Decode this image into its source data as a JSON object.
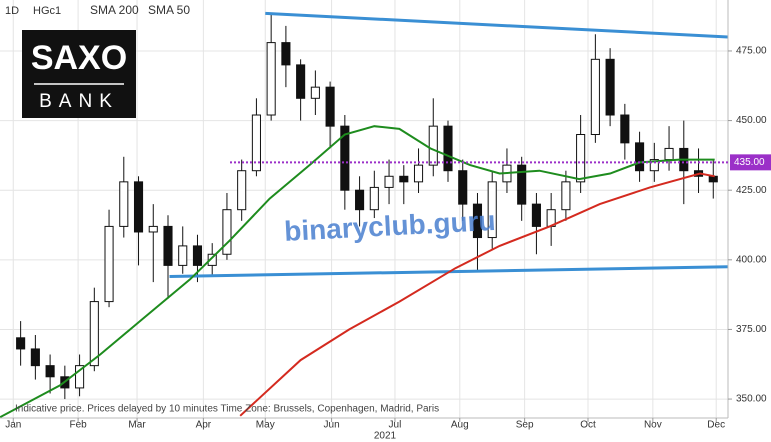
{
  "chart_data": {
    "type": "candlestick",
    "interval": "1D",
    "symbol": "HGc1",
    "x": [
      0.5,
      1.5,
      2.5,
      3.5,
      4.5,
      5.5,
      6.5,
      7.5,
      8.5,
      9.5,
      10.5,
      11.5,
      12.5,
      13.5,
      14.5,
      15.5,
      16.5,
      17.5,
      18.5,
      19.5,
      20.5,
      21.5,
      22.5,
      23.5,
      24.5,
      25.5,
      26.5,
      27.5,
      28.5,
      29.5,
      30.5,
      31.5,
      32.5,
      33.5,
      34.5,
      35.5,
      36.5,
      37.5,
      38.5,
      39.5,
      40.5,
      41.5,
      42.5,
      43.5,
      44.5,
      45.5,
      46.5,
      47.5
    ],
    "open": [
      372,
      368,
      362,
      358,
      354,
      362,
      385,
      412,
      428,
      410,
      412,
      398,
      405,
      398,
      402,
      418,
      432,
      452,
      478,
      470,
      458,
      462,
      448,
      425,
      418,
      426,
      430,
      428,
      434,
      448,
      432,
      420,
      408,
      428,
      434,
      420,
      412,
      418,
      428,
      445,
      472,
      452,
      442,
      432,
      436,
      440,
      432,
      430
    ],
    "high": [
      378,
      373,
      366,
      362,
      366,
      390,
      418,
      437,
      430,
      420,
      416,
      412,
      409,
      406,
      424,
      436,
      458,
      488,
      484,
      472,
      468,
      464,
      452,
      430,
      432,
      436,
      434,
      440,
      458,
      450,
      436,
      424,
      432,
      440,
      437,
      424,
      424,
      432,
      452,
      481,
      476,
      456,
      446,
      442,
      448,
      450,
      440,
      436
    ],
    "low": [
      362,
      357,
      352,
      350,
      351,
      360,
      383,
      408,
      398,
      392,
      386,
      395,
      392,
      394,
      400,
      414,
      430,
      450,
      462,
      450,
      452,
      440,
      418,
      412,
      415,
      420,
      420,
      424,
      430,
      428,
      414,
      396,
      404,
      424,
      414,
      402,
      405,
      414,
      424,
      442,
      448,
      436,
      428,
      428,
      432,
      420,
      424,
      422
    ],
    "close": [
      368,
      362,
      358,
      354,
      362,
      385,
      412,
      428,
      410,
      412,
      398,
      405,
      398,
      402,
      418,
      432,
      452,
      478,
      470,
      458,
      462,
      448,
      425,
      418,
      426,
      430,
      428,
      434,
      448,
      432,
      420,
      408,
      428,
      434,
      420,
      412,
      418,
      428,
      445,
      472,
      452,
      442,
      432,
      436,
      440,
      432,
      430,
      428
    ],
    "up_color": "#ffffff",
    "down_color": "#111111",
    "series": [
      {
        "name": "SMA 200",
        "color": "#d42a1f",
        "x": [
          15.4,
          19.5,
          22.8,
          26.2,
          30.0,
          33.0,
          36.4,
          39.8,
          43.2,
          46.6,
          47.6
        ],
        "values": [
          344,
          364,
          375,
          385,
          397,
          405,
          412,
          420,
          426,
          431,
          430
        ]
      },
      {
        "name": "SMA 50",
        "color": "#1e8c1e",
        "x": [
          -0.9,
          3.2,
          5.9,
          8.6,
          12.0,
          14.7,
          17.4,
          20.1,
          22.5,
          24.5,
          26.2,
          28.3,
          31.0,
          33.0,
          35.7,
          38.4,
          40.5,
          42.5,
          45.2,
          47.6
        ],
        "values": [
          343.5,
          355,
          366,
          378,
          393,
          407,
          422,
          434,
          445,
          448,
          447,
          440,
          434,
          431,
          432,
          429,
          431,
          435,
          436,
          436
        ]
      }
    ],
    "trendlines": [
      {
        "color": "#3a8fd4",
        "x": [
          17.1,
          48.5
        ],
        "values": [
          488.5,
          480
        ]
      },
      {
        "color": "#3a8fd4",
        "x": [
          10.6,
          48.5
        ],
        "values": [
          394,
          397.5
        ]
      }
    ],
    "level": {
      "value": 435,
      "label": "435.00",
      "color": "#9b30c8"
    },
    "xlim": [
      -0.9,
      48.5
    ],
    "ylim": [
      343.2,
      493.3
    ],
    "xticks": [
      {
        "value": 0,
        "label": "Jan"
      },
      {
        "value": 4.4,
        "label": "Feb"
      },
      {
        "value": 8.4,
        "label": "Mar"
      },
      {
        "value": 12.9,
        "label": "Apr"
      },
      {
        "value": 17.1,
        "label": "May"
      },
      {
        "value": 21.6,
        "label": "Jun"
      },
      {
        "value": 25.9,
        "label": "Jul"
      },
      {
        "value": 30.3,
        "label": "Aug"
      },
      {
        "value": 34.7,
        "label": "Sep"
      },
      {
        "value": 39.0,
        "label": "Oct"
      },
      {
        "value": 43.4,
        "label": "Nov"
      },
      {
        "value": 47.7,
        "label": "Dec"
      }
    ],
    "yticks": [
      {
        "value": 350,
        "label": "350.00"
      },
      {
        "value": 375,
        "label": "375.00"
      },
      {
        "value": 400,
        "label": "400.00"
      },
      {
        "value": 425,
        "label": "425.00"
      },
      {
        "value": 450,
        "label": "450.00"
      },
      {
        "value": 475,
        "label": "475.00"
      }
    ],
    "grid": true,
    "year": "2021",
    "note": "Indicative price. Prices delayed by 10 minutes    Time Zone: Brussels, Copenhagen, Madrid, Paris",
    "watermark": "binaryclub.guru",
    "logo": {
      "top": "SAXO",
      "bottom": "BANK"
    }
  }
}
